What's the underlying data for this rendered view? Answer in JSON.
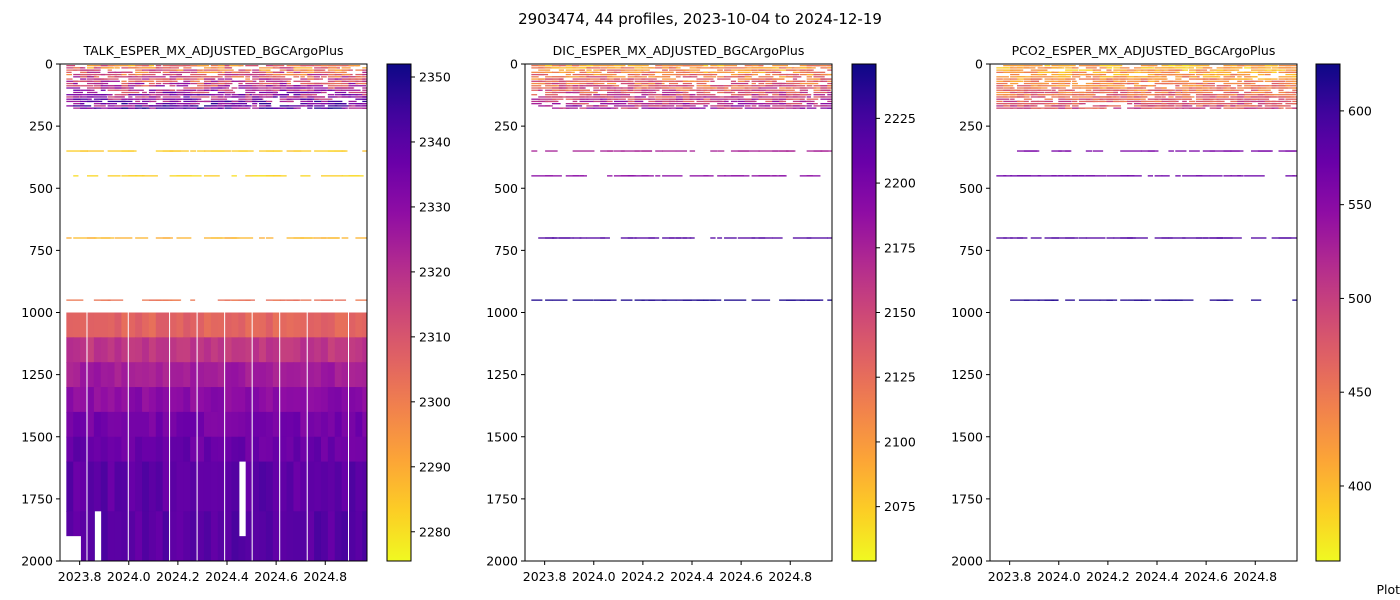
{
  "figure": {
    "title": "2903474, 44 profiles, 2023-10-04 to 2024-12-19",
    "footer_text": "Plot"
  },
  "chart_data": [
    {
      "type": "heatmap",
      "title": "TALK_ESPER_MX_ADJUSTED_BGCArgoPlus",
      "x_ticks": [
        "2023.8",
        "2024.0",
        "2024.2",
        "2024.4",
        "2024.6",
        "2024.8"
      ],
      "xlim": [
        2023.72,
        2024.97
      ],
      "y_ticks": [
        "0",
        "250",
        "500",
        "750",
        "1000",
        "1250",
        "1500",
        "1750",
        "2000"
      ],
      "ylim": [
        2000,
        0
      ],
      "y_inverted": true,
      "colormap": "plasma_r",
      "colorbar": {
        "ticks": [
          "2280",
          "2290",
          "2300",
          "2310",
          "2320",
          "2330",
          "2340",
          "2350"
        ],
        "range": [
          2275.5,
          2352
        ]
      },
      "n_profiles": 44,
      "shallow_layer": {
        "depth_range": [
          0,
          180
        ],
        "value_range": [
          2282,
          2352
        ]
      },
      "sparse_depths": [
        {
          "depth": 350,
          "value": 2284
        },
        {
          "depth": 450,
          "value": 2282
        },
        {
          "depth": 700,
          "value": 2288
        },
        {
          "depth": 950,
          "value": 2302
        }
      ],
      "deep_layer": {
        "depth_range": [
          1000,
          2000
        ],
        "levels": [
          {
            "depth_top": 1000,
            "depth_bottom": 1100,
            "value": 2306
          },
          {
            "depth_top": 1100,
            "depth_bottom": 1200,
            "value": 2318
          },
          {
            "depth_top": 1200,
            "depth_bottom": 1300,
            "value": 2325
          },
          {
            "depth_top": 1300,
            "depth_bottom": 1400,
            "value": 2330
          },
          {
            "depth_top": 1400,
            "depth_bottom": 1500,
            "value": 2334
          },
          {
            "depth_top": 1500,
            "depth_bottom": 1600,
            "value": 2337
          },
          {
            "depth_top": 1600,
            "depth_bottom": 1800,
            "value": 2339
          },
          {
            "depth_top": 1800,
            "depth_bottom": 2000,
            "value": 2340
          }
        ]
      }
    },
    {
      "type": "heatmap",
      "title": "DIC_ESPER_MX_ADJUSTED_BGCArgoPlus",
      "x_ticks": [
        "2023.8",
        "2024.0",
        "2024.2",
        "2024.4",
        "2024.6",
        "2024.8"
      ],
      "xlim": [
        2023.72,
        2024.97
      ],
      "y_ticks": [
        "0",
        "250",
        "500",
        "750",
        "1000",
        "1250",
        "1500",
        "1750",
        "2000"
      ],
      "ylim": [
        2000,
        0
      ],
      "y_inverted": true,
      "colormap": "plasma_r",
      "colorbar": {
        "ticks": [
          "2075",
          "2100",
          "2125",
          "2150",
          "2175",
          "2200",
          "2225"
        ],
        "range": [
          2054,
          2246
        ]
      },
      "n_profiles": 44,
      "shallow_layer": {
        "depth_range": [
          0,
          180
        ],
        "value_range": [
          2065,
          2200
        ]
      },
      "sparse_depths": [
        {
          "depth": 350,
          "value": 2175
        },
        {
          "depth": 450,
          "value": 2190
        },
        {
          "depth": 700,
          "value": 2220
        },
        {
          "depth": 950,
          "value": 2240
        }
      ]
    },
    {
      "type": "heatmap",
      "title": "PCO2_ESPER_MX_ADJUSTED_BGCArgoPlus",
      "x_ticks": [
        "2023.8",
        "2024.0",
        "2024.2",
        "2024.4",
        "2024.6",
        "2024.8"
      ],
      "xlim": [
        2023.72,
        2024.97
      ],
      "y_ticks": [
        "0",
        "250",
        "500",
        "750",
        "1000",
        "1250",
        "1500",
        "1750",
        "2000"
      ],
      "ylim": [
        2000,
        0
      ],
      "y_inverted": true,
      "colormap": "plasma_r",
      "colorbar": {
        "ticks": [
          "400",
          "450",
          "500",
          "550",
          "600"
        ],
        "range": [
          360,
          625
        ]
      },
      "n_profiles": 44,
      "shallow_layer": {
        "depth_range": [
          0,
          180
        ],
        "value_range": [
          365,
          520
        ]
      },
      "sparse_depths": [
        {
          "depth": 350,
          "value": 560
        },
        {
          "depth": 450,
          "value": 570
        },
        {
          "depth": 700,
          "value": 590
        },
        {
          "depth": 950,
          "value": 615
        }
      ]
    }
  ]
}
